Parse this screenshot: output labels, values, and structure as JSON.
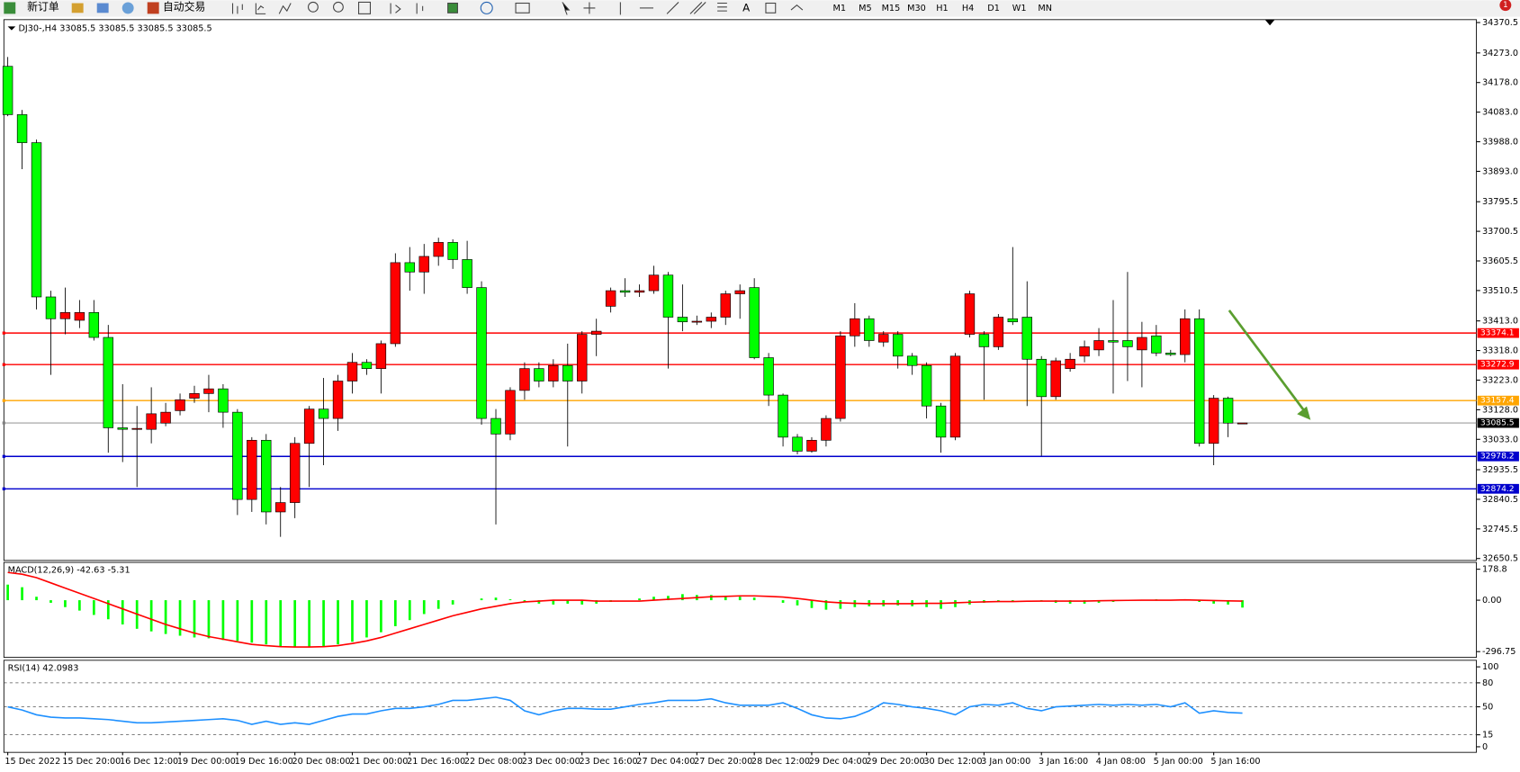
{
  "toolbar": {
    "buttons": [
      "新订单",
      "自动交易"
    ],
    "timeframes": [
      "M1",
      "M5",
      "M15",
      "M30",
      "H1",
      "H4",
      "D1",
      "W1",
      "MN"
    ],
    "text_tool": "A",
    "badge": "1"
  },
  "chart_data": [
    {
      "type": "candlestick",
      "title": "DJ30-,H4  33085.5 33085.5 33085.5 33085.5",
      "up_color": "#ff0000",
      "down_color": "#00ff00",
      "categories": [
        "15 Dec 2022",
        null,
        null,
        null,
        "15 Dec 20:00",
        null,
        null,
        null,
        "16 Dec 12:00",
        null,
        null,
        null,
        "19 Dec 00:00",
        null,
        null,
        null,
        "19 Dec 16:00",
        null,
        null,
        null,
        "20 Dec 08:00",
        null,
        null,
        null,
        "21 Dec 00:00",
        null,
        null,
        null,
        "21 Dec 16:00",
        null,
        null,
        null,
        "22 Dec 08:00",
        null,
        null,
        null,
        "23 Dec 00:00",
        null,
        null,
        null,
        "23 Dec 16:00",
        null,
        null,
        null,
        "27 Dec 04:00",
        null,
        null,
        null,
        "27 Dec 20:00",
        null,
        null,
        null,
        "28 Dec 12:00",
        null,
        null,
        null,
        "29 Dec 04:00",
        null,
        null,
        null,
        "29 Dec 20:00",
        null,
        null,
        null,
        "30 Dec 12:00",
        null,
        null,
        null,
        "3 Jan 00:00",
        null,
        null,
        null,
        "3 Jan 16:00",
        null,
        null,
        null,
        "4 Jan 08:00",
        null,
        null,
        null,
        "5 Jan 00:00",
        null,
        null,
        null,
        "5 Jan 16:00",
        null,
        null
      ],
      "open": [
        34230,
        34075,
        33985,
        33490,
        33420,
        33415,
        33440,
        33360,
        33070,
        33065,
        33065,
        33085,
        33125,
        33165,
        33180,
        33195,
        33120,
        32840,
        33030,
        32800,
        32830,
        33020,
        33130,
        33100,
        33220,
        33280,
        33260,
        33340,
        33600,
        33570,
        33620,
        33665,
        33610,
        33520,
        33100,
        33050,
        33190,
        33260,
        33220,
        33270,
        33220,
        33370,
        33460,
        33510,
        33505,
        33510,
        33560,
        33425,
        33410,
        33412,
        33425,
        33500,
        33520,
        33295,
        33175,
        33040,
        32995,
        33030,
        33100,
        33365,
        33420,
        33345,
        33370,
        33300,
        33270,
        33140,
        33040,
        33370,
        33370,
        33330,
        33420,
        33425,
        33290,
        33170,
        33260,
        33300,
        33320,
        33350,
        33350,
        33320,
        33365,
        33310,
        33305,
        33420,
        33020,
        33165,
        33085.5
      ],
      "high": [
        34260,
        34090,
        33995,
        33510,
        33520,
        33480,
        33480,
        33400,
        33210,
        33140,
        33200,
        33150,
        33180,
        33205,
        33240,
        33210,
        33130,
        33040,
        33050,
        32880,
        33040,
        33140,
        33230,
        33240,
        33310,
        33290,
        33350,
        33630,
        33650,
        33660,
        33680,
        33675,
        33670,
        33540,
        33130,
        33200,
        33280,
        33280,
        33290,
        33340,
        33380,
        33420,
        33520,
        33550,
        33530,
        33590,
        33570,
        33530,
        33430,
        33440,
        33510,
        33530,
        33550,
        33310,
        33180,
        33050,
        33040,
        33110,
        33380,
        33470,
        33430,
        33380,
        33380,
        33310,
        33280,
        33150,
        33310,
        33510,
        33380,
        33435,
        33650,
        33540,
        33300,
        33295,
        33310,
        33350,
        33390,
        33480,
        33570,
        33410,
        33400,
        33320,
        33450,
        33450,
        33175,
        33170,
        33085.5
      ],
      "low": [
        34070,
        33900,
        33450,
        33240,
        33370,
        33390,
        33350,
        32990,
        32960,
        32880,
        33020,
        33075,
        33110,
        33150,
        33120,
        33070,
        32790,
        32800,
        32760,
        32720,
        32780,
        32880,
        32950,
        33060,
        33180,
        33240,
        33180,
        33330,
        33510,
        33500,
        33590,
        33580,
        33500,
        33080,
        32760,
        33030,
        33160,
        33200,
        33200,
        33010,
        33180,
        33300,
        33440,
        33490,
        33490,
        33500,
        33260,
        33380,
        33400,
        33390,
        33400,
        33420,
        33290,
        33140,
        33010,
        32985,
        32990,
        33010,
        33090,
        33330,
        33330,
        33330,
        33260,
        33240,
        33100,
        32990,
        33030,
        33360,
        33160,
        33320,
        33400,
        33140,
        32980,
        33160,
        33250,
        33280,
        33300,
        33180,
        33220,
        33200,
        33300,
        33300,
        33280,
        33010,
        32950,
        33040,
        33085.5
      ],
      "close": [
        34075,
        33985,
        33490,
        33420,
        33440,
        33440,
        33360,
        33070,
        33065,
        33068,
        33115,
        33120,
        33160,
        33180,
        33195,
        33120,
        32840,
        33030,
        32800,
        32830,
        33020,
        33130,
        33100,
        33220,
        33280,
        33260,
        33340,
        33600,
        33570,
        33620,
        33665,
        33610,
        33520,
        33100,
        33050,
        33190,
        33260,
        33220,
        33270,
        33220,
        33370,
        33380,
        33510,
        33505,
        33510,
        33560,
        33425,
        33410,
        33412,
        33425,
        33500,
        33510,
        33295,
        33175,
        33040,
        32995,
        33030,
        33100,
        33365,
        33420,
        33350,
        33370,
        33300,
        33270,
        33140,
        33040,
        33300,
        33500,
        33330,
        33425,
        33410,
        33290,
        33170,
        33285,
        33290,
        33330,
        33350,
        33345,
        33330,
        33360,
        33310,
        33305,
        33420,
        33020,
        33165,
        33085,
        33085.5
      ],
      "ylim": [
        32650.5,
        34370.5
      ],
      "yticks": [
        34370.5,
        {
          "value": 34273,
          "label": "34273.0"
        },
        {
          "value": 34178,
          "label": "34178.0"
        },
        {
          "value": 34083,
          "label": "34083.0"
        },
        {
          "value": 33988,
          "label": "33988.0"
        },
        {
          "value": 33893,
          "label": "33893.0"
        },
        33795.5,
        33700.5,
        33605.5,
        33510.5,
        {
          "value": 33413,
          "label": "33413.0"
        },
        {
          "value": 33318,
          "label": "33318.0"
        },
        {
          "value": 33223,
          "label": "33223.0"
        },
        {
          "value": 33128,
          "label": "33128.0"
        },
        {
          "value": 33033,
          "label": "33033.0"
        },
        32935.5,
        32840.5,
        32745.5,
        32650.5
      ],
      "levels": [
        {
          "value": 33374.1,
          "color": "#ff0000",
          "box": "#ff0000"
        },
        {
          "value": 33272.9,
          "color": "#ff0000",
          "box": "#ff0000"
        },
        {
          "value": 33157.4,
          "color": "#ffa500",
          "box": "#ffa500"
        },
        {
          "value": 33085.5,
          "color": "#808080",
          "box": "#000000"
        },
        {
          "value": 32978.2,
          "color": "#0000cd",
          "box": "#0000cd"
        },
        {
          "value": 32874.2,
          "color": "#0000cd",
          "box": "#0000cd"
        }
      ]
    },
    {
      "type": "combo",
      "title": "MACD(12,26,9) -42.63 -5.31",
      "ylim": [
        -330,
        207
      ],
      "yticks": [
        178.8,
        {
          "value": 0,
          "label": "0.00"
        },
        -296.75
      ],
      "series": [
        {
          "type": "bar",
          "color": "#00ff00",
          "values": [
            90,
            75,
            20,
            -15,
            -40,
            -60,
            -85,
            -110,
            -140,
            -165,
            -180,
            -195,
            -205,
            -215,
            -220,
            -230,
            -235,
            -245,
            -255,
            -265,
            -270,
            -270,
            -265,
            -255,
            -240,
            -215,
            -185,
            -150,
            -115,
            -80,
            -50,
            -25,
            0,
            10,
            15,
            5,
            -10,
            -20,
            -25,
            -20,
            -25,
            -20,
            -10,
            0,
            10,
            20,
            25,
            35,
            30,
            30,
            25,
            20,
            15,
            0,
            -15,
            -30,
            -45,
            -55,
            -50,
            -40,
            -35,
            -35,
            -30,
            -35,
            -40,
            -50,
            -40,
            -25,
            -15,
            -10,
            -5,
            0,
            -5,
            -15,
            -20,
            -20,
            -15,
            -10,
            -5,
            0,
            5,
            0,
            5,
            -10,
            -20,
            -25,
            -42.63
          ]
        },
        {
          "type": "line",
          "color": "#ff0000",
          "values": [
            160,
            150,
            130,
            100,
            70,
            40,
            10,
            -20,
            -50,
            -80,
            -110,
            -140,
            -165,
            -190,
            -210,
            -225,
            -240,
            -255,
            -262,
            -268,
            -270,
            -270,
            -268,
            -262,
            -250,
            -235,
            -215,
            -190,
            -165,
            -140,
            -115,
            -90,
            -70,
            -50,
            -35,
            -20,
            -10,
            -5,
            0,
            0,
            0,
            -5,
            -5,
            -5,
            -5,
            0,
            5,
            10,
            15,
            20,
            22,
            25,
            25,
            22,
            18,
            10,
            0,
            -10,
            -15,
            -18,
            -20,
            -20,
            -20,
            -20,
            -18,
            -18,
            -15,
            -12,
            -10,
            -8,
            -8,
            -6,
            -5,
            -5,
            -5,
            -5,
            -3,
            -2,
            -1,
            0,
            0,
            0,
            2,
            0,
            -2,
            -4,
            -5.31
          ]
        }
      ]
    },
    {
      "type": "line",
      "title": "RSI(14) 42.0983",
      "ylim": [
        -7,
        107
      ],
      "yticks": [
        100,
        80,
        50,
        15,
        0
      ],
      "dashed_levels": [
        80,
        50,
        15
      ],
      "series": [
        {
          "color": "#1e90ff",
          "values": [
            50,
            46,
            40,
            37,
            36,
            36,
            35,
            34,
            32,
            30,
            30,
            31,
            32,
            33,
            34,
            35,
            33,
            28,
            32,
            28,
            30,
            28,
            33,
            38,
            41,
            41,
            45,
            48,
            48,
            50,
            53,
            58,
            58,
            60,
            62,
            58,
            45,
            40,
            45,
            48,
            48,
            47,
            47,
            50,
            53,
            55,
            58,
            58,
            58,
            60,
            55,
            52,
            52,
            52,
            55,
            48,
            40,
            36,
            35,
            38,
            45,
            55,
            53,
            50,
            48,
            45,
            40,
            50,
            53,
            52,
            55,
            48,
            45,
            50,
            51,
            52,
            53,
            52,
            53,
            52,
            53,
            50,
            55,
            42,
            45,
            43,
            42.0983
          ]
        }
      ]
    }
  ]
}
